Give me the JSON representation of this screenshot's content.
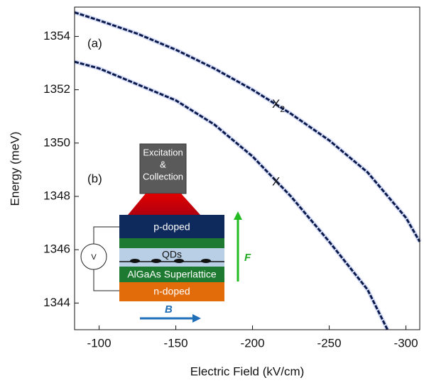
{
  "chart_data": {
    "type": "line",
    "xlabel": "Electric Field (kV/cm)",
    "ylabel": "Energy (meV)",
    "xlim": [
      -84,
      -309
    ],
    "ylim": [
      1343,
      1355.1
    ],
    "xticks": [
      -100,
      -150,
      -200,
      -250,
      -300
    ],
    "yticks": [
      1344,
      1346,
      1348,
      1350,
      1352,
      1354
    ],
    "series": [
      {
        "name": "X",
        "color": "#0a1a4a",
        "x": [
          -84,
          -100,
          -125,
          -150,
          -175,
          -200,
          -225,
          -250,
          -275,
          -288
        ],
        "values": [
          1353.05,
          1352.8,
          1352.2,
          1351.6,
          1350.7,
          1349.5,
          1348.0,
          1346.3,
          1344.5,
          1343.0
        ]
      },
      {
        "name": "X2",
        "color": "#0a1a4a",
        "x": [
          -84,
          -100,
          -125,
          -150,
          -175,
          -200,
          -225,
          -250,
          -275,
          -300,
          -309
        ],
        "values": [
          1354.9,
          1354.6,
          1354.1,
          1353.5,
          1352.8,
          1352.0,
          1351.1,
          1350.1,
          1348.9,
          1347.2,
          1346.3
        ]
      }
    ],
    "annotations": [
      {
        "text": "(a)"
      },
      {
        "text": "(b)"
      },
      {
        "text": "X"
      },
      {
        "text": "X",
        "sub": "2"
      }
    ]
  },
  "inset": {
    "source": [
      "Excitation",
      "&",
      "Collection"
    ],
    "p_layer": "p-doped",
    "qd_layer": "QDs",
    "sl_layer": "AlGaAs Superlattice",
    "n_layer": "n-doped",
    "voltmeter": "V",
    "field": "F",
    "magnet": "B"
  }
}
